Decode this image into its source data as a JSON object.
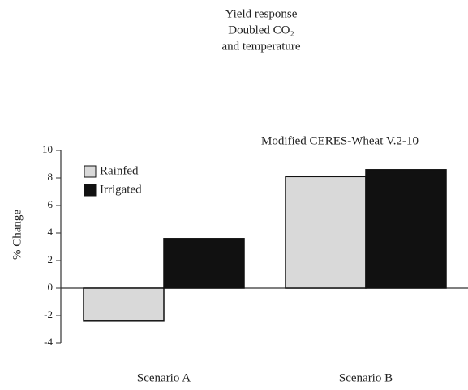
{
  "chart_data": {
    "type": "bar",
    "title": [
      "Yield response",
      "Doubled CO₂",
      "and temperature"
    ],
    "subtitle": "Modified CERES-Wheat V.2-10",
    "y_label": "% Change",
    "categories": [
      "Scenario A",
      "Scenario B"
    ],
    "series": [
      {
        "name": "Rainfed",
        "color": "#d9d9d9",
        "values": [
          -2.4,
          8.1
        ]
      },
      {
        "name": "Irrigated",
        "color": "#111111",
        "values": [
          3.6,
          8.6
        ]
      }
    ],
    "ylim": [
      -4,
      10
    ],
    "yticks": [
      -4,
      -2,
      0,
      2,
      4,
      6,
      8,
      10
    ],
    "legend": "upper left"
  }
}
